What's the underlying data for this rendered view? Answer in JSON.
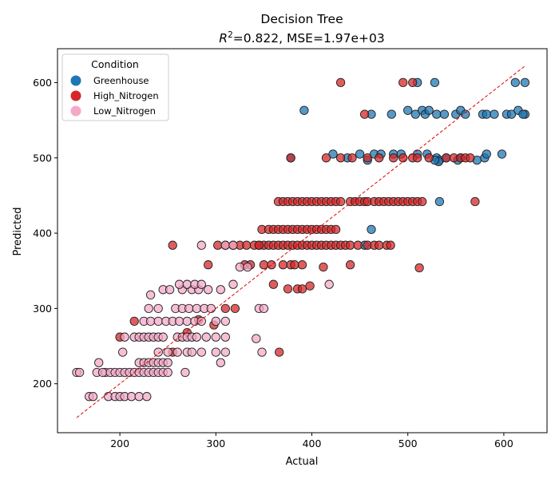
{
  "chart_data": {
    "type": "scatter",
    "title": "Decision Tree",
    "subtitle_prefix": "R",
    "subtitle_sup": "2",
    "subtitle_rest": "=0.822, MSE=1.97e+03",
    "xlabel": "Actual",
    "ylabel": "Predicted",
    "xlim": [
      135,
      645
    ],
    "ylim": [
      135,
      645
    ],
    "xticks": [
      200,
      300,
      400,
      500,
      600
    ],
    "yticks": [
      200,
      300,
      400,
      500,
      600
    ],
    "grid": false,
    "legend": {
      "title": "Condition",
      "placement": "top-left"
    },
    "reference_line": {
      "x": [
        155,
        622
      ],
      "y": [
        155,
        622
      ],
      "color": "#e00000",
      "style": "dashed"
    },
    "series": [
      {
        "name": "Greenhouse",
        "color": "#1f77b4",
        "points": [
          [
            392,
            563
          ],
          [
            378,
            500
          ],
          [
            422,
            505
          ],
          [
            437,
            500
          ],
          [
            450,
            505
          ],
          [
            458,
            497
          ],
          [
            465,
            505
          ],
          [
            472,
            505
          ],
          [
            485,
            505
          ],
          [
            493,
            505
          ],
          [
            510,
            505
          ],
          [
            520,
            505
          ],
          [
            530,
            500
          ],
          [
            533,
            497
          ],
          [
            540,
            500
          ],
          [
            555,
            500
          ],
          [
            572,
            497
          ],
          [
            580,
            500
          ],
          [
            582,
            505
          ],
          [
            598,
            505
          ],
          [
            500,
            563
          ],
          [
            508,
            558
          ],
          [
            515,
            563
          ],
          [
            518,
            558
          ],
          [
            522,
            563
          ],
          [
            530,
            558
          ],
          [
            538,
            558
          ],
          [
            550,
            558
          ],
          [
            555,
            563
          ],
          [
            560,
            558
          ],
          [
            578,
            558
          ],
          [
            582,
            558
          ],
          [
            590,
            558
          ],
          [
            603,
            558
          ],
          [
            608,
            558
          ],
          [
            615,
            563
          ],
          [
            622,
            558
          ],
          [
            620,
            558
          ],
          [
            462,
            558
          ],
          [
            483,
            558
          ],
          [
            510,
            600
          ],
          [
            528,
            600
          ],
          [
            612,
            600
          ],
          [
            622,
            600
          ],
          [
            455,
            384
          ],
          [
            462,
            405
          ],
          [
            533,
            442
          ],
          [
            532,
            495
          ],
          [
            528,
            497
          ],
          [
            552,
            497
          ]
        ]
      },
      {
        "name": "High_Nitrogen",
        "color": "#d62728",
        "points": [
          [
            200,
            262
          ],
          [
            215,
            283
          ],
          [
            255,
            242
          ],
          [
            270,
            268
          ],
          [
            292,
            358
          ],
          [
            255,
            384
          ],
          [
            302,
            384
          ],
          [
            310,
            384
          ],
          [
            318,
            384
          ],
          [
            325,
            384
          ],
          [
            332,
            384
          ],
          [
            340,
            384
          ],
          [
            345,
            384
          ],
          [
            350,
            384
          ],
          [
            355,
            384
          ],
          [
            360,
            384
          ],
          [
            365,
            384
          ],
          [
            370,
            384
          ],
          [
            375,
            384
          ],
          [
            380,
            384
          ],
          [
            385,
            384
          ],
          [
            390,
            384
          ],
          [
            395,
            384
          ],
          [
            400,
            384
          ],
          [
            405,
            384
          ],
          [
            410,
            384
          ],
          [
            415,
            384
          ],
          [
            420,
            384
          ],
          [
            425,
            384
          ],
          [
            430,
            384
          ],
          [
            435,
            384
          ],
          [
            440,
            384
          ],
          [
            448,
            384
          ],
          [
            458,
            384
          ],
          [
            465,
            384
          ],
          [
            470,
            384
          ],
          [
            478,
            384
          ],
          [
            482,
            384
          ],
          [
            330,
            358
          ],
          [
            336,
            358
          ],
          [
            350,
            358
          ],
          [
            358,
            358
          ],
          [
            370,
            358
          ],
          [
            378,
            358
          ],
          [
            382,
            358
          ],
          [
            390,
            358
          ],
          [
            412,
            355
          ],
          [
            440,
            358
          ],
          [
            348,
            405
          ],
          [
            355,
            405
          ],
          [
            360,
            405
          ],
          [
            365,
            405
          ],
          [
            370,
            405
          ],
          [
            375,
            405
          ],
          [
            380,
            405
          ],
          [
            385,
            405
          ],
          [
            390,
            405
          ],
          [
            395,
            405
          ],
          [
            400,
            405
          ],
          [
            405,
            405
          ],
          [
            410,
            405
          ],
          [
            415,
            405
          ],
          [
            420,
            405
          ],
          [
            425,
            405
          ],
          [
            365,
            442
          ],
          [
            370,
            442
          ],
          [
            375,
            442
          ],
          [
            380,
            442
          ],
          [
            385,
            442
          ],
          [
            390,
            442
          ],
          [
            395,
            442
          ],
          [
            400,
            442
          ],
          [
            405,
            442
          ],
          [
            410,
            442
          ],
          [
            415,
            442
          ],
          [
            420,
            442
          ],
          [
            425,
            442
          ],
          [
            430,
            442
          ],
          [
            440,
            442
          ],
          [
            445,
            442
          ],
          [
            450,
            442
          ],
          [
            455,
            442
          ],
          [
            458,
            442
          ],
          [
            465,
            442
          ],
          [
            470,
            442
          ],
          [
            475,
            442
          ],
          [
            480,
            442
          ],
          [
            485,
            442
          ],
          [
            490,
            442
          ],
          [
            495,
            442
          ],
          [
            500,
            442
          ],
          [
            505,
            442
          ],
          [
            510,
            442
          ],
          [
            515,
            442
          ],
          [
            570,
            442
          ],
          [
            378,
            500
          ],
          [
            415,
            500
          ],
          [
            430,
            500
          ],
          [
            442,
            500
          ],
          [
            458,
            500
          ],
          [
            470,
            500
          ],
          [
            485,
            500
          ],
          [
            495,
            500
          ],
          [
            505,
            500
          ],
          [
            510,
            500
          ],
          [
            522,
            500
          ],
          [
            540,
            500
          ],
          [
            548,
            500
          ],
          [
            555,
            500
          ],
          [
            560,
            500
          ],
          [
            565,
            500
          ],
          [
            455,
            558
          ],
          [
            430,
            600
          ],
          [
            495,
            600
          ],
          [
            505,
            600
          ],
          [
            512,
            354
          ],
          [
            366,
            242
          ],
          [
            345,
            384
          ],
          [
            375,
            326
          ],
          [
            385,
            326
          ],
          [
            390,
            326
          ],
          [
            398,
            330
          ],
          [
            360,
            332
          ],
          [
            310,
            300
          ],
          [
            320,
            300
          ],
          [
            298,
            278
          ],
          [
            282,
            285
          ]
        ]
      },
      {
        "name": "Low_Nitrogen",
        "color": "#f4a9c8",
        "points": [
          [
            155,
            215
          ],
          [
            158,
            215
          ],
          [
            168,
            183
          ],
          [
            172,
            183
          ],
          [
            176,
            215
          ],
          [
            178,
            228
          ],
          [
            185,
            215
          ],
          [
            188,
            183
          ],
          [
            195,
            183
          ],
          [
            200,
            183
          ],
          [
            205,
            183
          ],
          [
            212,
            183
          ],
          [
            220,
            183
          ],
          [
            228,
            183
          ],
          [
            182,
            215
          ],
          [
            190,
            215
          ],
          [
            195,
            215
          ],
          [
            200,
            215
          ],
          [
            205,
            215
          ],
          [
            210,
            215
          ],
          [
            215,
            215
          ],
          [
            220,
            215
          ],
          [
            225,
            215
          ],
          [
            230,
            215
          ],
          [
            235,
            215
          ],
          [
            240,
            215
          ],
          [
            245,
            215
          ],
          [
            250,
            215
          ],
          [
            268,
            215
          ],
          [
            203,
            242
          ],
          [
            220,
            228
          ],
          [
            225,
            228
          ],
          [
            230,
            228
          ],
          [
            235,
            228
          ],
          [
            240,
            228
          ],
          [
            245,
            228
          ],
          [
            250,
            228
          ],
          [
            205,
            262
          ],
          [
            215,
            262
          ],
          [
            220,
            262
          ],
          [
            225,
            262
          ],
          [
            230,
            262
          ],
          [
            235,
            262
          ],
          [
            240,
            262
          ],
          [
            245,
            262
          ],
          [
            225,
            283
          ],
          [
            232,
            283
          ],
          [
            240,
            283
          ],
          [
            248,
            283
          ],
          [
            255,
            283
          ],
          [
            262,
            283
          ],
          [
            270,
            283
          ],
          [
            278,
            283
          ],
          [
            285,
            283
          ],
          [
            300,
            283
          ],
          [
            310,
            283
          ],
          [
            240,
            242
          ],
          [
            250,
            242
          ],
          [
            260,
            242
          ],
          [
            270,
            242
          ],
          [
            275,
            242
          ],
          [
            285,
            242
          ],
          [
            300,
            242
          ],
          [
            310,
            242
          ],
          [
            230,
            300
          ],
          [
            240,
            300
          ],
          [
            258,
            300
          ],
          [
            265,
            300
          ],
          [
            272,
            300
          ],
          [
            280,
            300
          ],
          [
            288,
            300
          ],
          [
            295,
            300
          ],
          [
            232,
            318
          ],
          [
            245,
            325
          ],
          [
            252,
            325
          ],
          [
            265,
            325
          ],
          [
            275,
            325
          ],
          [
            282,
            325
          ],
          [
            292,
            325
          ],
          [
            305,
            325
          ],
          [
            262,
            332
          ],
          [
            270,
            332
          ],
          [
            278,
            332
          ],
          [
            285,
            332
          ],
          [
            318,
            332
          ],
          [
            285,
            384
          ],
          [
            310,
            384
          ],
          [
            318,
            384
          ],
          [
            325,
            355
          ],
          [
            333,
            355
          ],
          [
            342,
            260
          ],
          [
            345,
            300
          ],
          [
            350,
            300
          ],
          [
            348,
            242
          ],
          [
            418,
            332
          ],
          [
            305,
            228
          ],
          [
            300,
            262
          ],
          [
            290,
            262
          ],
          [
            260,
            262
          ],
          [
            265,
            262
          ],
          [
            270,
            262
          ],
          [
            275,
            262
          ],
          [
            280,
            262
          ],
          [
            310,
            262
          ]
        ]
      }
    ]
  }
}
